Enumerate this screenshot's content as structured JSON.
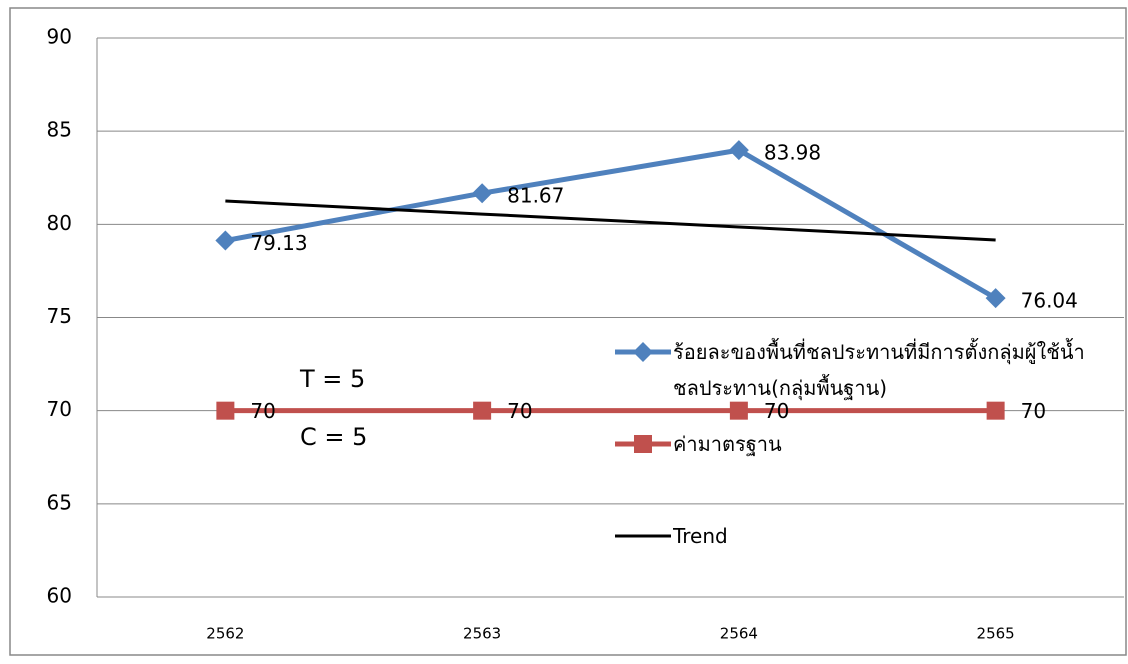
{
  "chart_data": {
    "type": "line",
    "categories": [
      "2562",
      "2563",
      "2564",
      "2565"
    ],
    "series": [
      {
        "name": "ร้อยละของพื้นที่ชลประทานที่มีการตั้งกลุ่มผู้ใช้น้ำชลประทาน(กลุ่มพื้นฐาน)",
        "color": "#4f81bd",
        "marker": "diamond",
        "values": [
          79.13,
          81.67,
          83.98,
          76.04
        ],
        "data_labels": true
      },
      {
        "name": "ค่ามาตรฐาน",
        "color": "#c0504d",
        "marker": "square",
        "values": [
          70,
          70,
          70,
          70
        ],
        "data_labels": true
      },
      {
        "name": "Trend",
        "color": "#000000",
        "marker": "none",
        "values": [
          81.25,
          80.55,
          79.86,
          79.16
        ],
        "data_labels": false
      }
    ],
    "ylim": [
      60,
      90
    ],
    "yticks": [
      60,
      65,
      70,
      75,
      80,
      85,
      90
    ],
    "grid": true,
    "legend": "right",
    "annotations": [
      "T = 5",
      "C = 5"
    ]
  }
}
